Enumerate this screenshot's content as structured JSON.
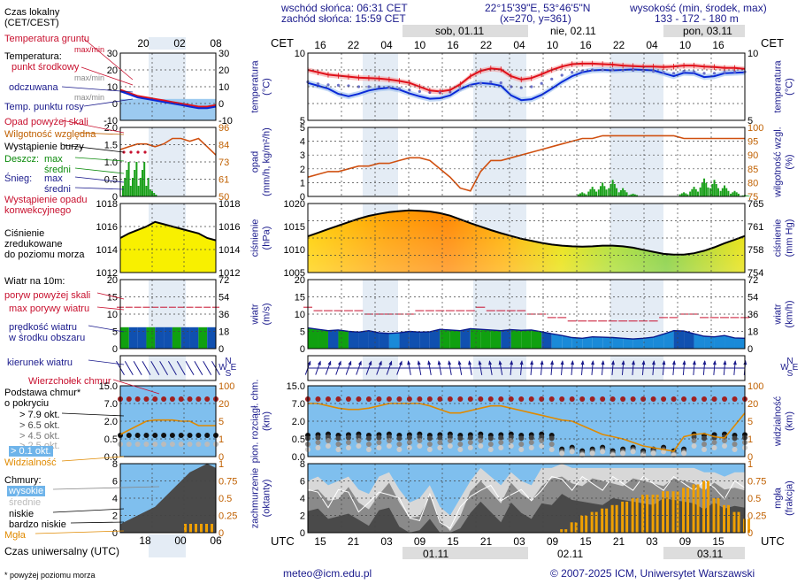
{
  "header": {
    "sunrise": "wschód słońca: 06:31 CET",
    "sunset": "zachód słońca: 15:59 CET",
    "coords": "22°15'39\"E, 53°46'5\"N",
    "grid": "(x=270, y=361)",
    "altitude_label": "wysokość (min, środek, max)",
    "altitude_values": "133 - 172 - 180 m"
  },
  "legend": {
    "local_time": "Czas lokalny\n(CET/CEST)",
    "ground_temp": "Temperatura gruntu",
    "maxmin": "max/min",
    "temperature": "Temperatura:",
    "mid_point": "punkt środkowy",
    "maxmin2": "max/min",
    "felt": "odczuwana",
    "maxmin3": "max/min",
    "dew": "Temp. punktu rosy",
    "precip_over": "Opad powyżej skali",
    "humidity": "Wilgotność względna",
    "storm": "Wystąpienie burzy",
    "rain": "Deszcz:",
    "rain_max": "max",
    "rain_mean": "średni",
    "snow": "Śnieg:",
    "snow_max": "max",
    "snow_mean": "średni",
    "conv": "Wystąpienie opadu\nkonwekcyjnego",
    "pressure": "Ciśnienie\nzredukowane\ndo poziomu morza",
    "wind_at": "Wiatr na 10m:",
    "gust_over": "poryw powyżej skali",
    "gust_max": "max porywy wiatru",
    "wind_speed": "prędkość wiatru\nw środku obszaru",
    "wind_dir": "kierunek wiatru",
    "cloud_top": "Wierzchołek chmur",
    "cloud_base": "Podstawa chmur*\no pokryciu",
    "okt79": "> 7.9 okt.",
    "okt65": "> 6.5 okt.",
    "okt45": "> 4.5 okt.",
    "okt25": "> 2.5 okt.",
    "okt01": "> 0.1 okt.",
    "visibility": "Widzialność",
    "clouds": "Chmury:",
    "high": "wysokie",
    "mid": "średnie",
    "low": "niskie",
    "very_low": "bardzo niskie",
    "fog": "Mgła",
    "utc": "Czas uniwersalny (UTC)",
    "footnote": "* powyżej poziomu morza"
  },
  "axes": {
    "cet": "CET",
    "utc": "UTC",
    "temp_l": "temperatura\n(°C)",
    "temp_r": "temperatura\n(°C)",
    "precip_l": "opad\n(mm/h, kg/m²/h)",
    "precip_r": "wilgotność wzgl.\n(%)",
    "press_l": "ciśnienie\n(hPa)",
    "press_r": "ciśnienie\n(mm Hg)",
    "wind_l": "wiatr\n(m/s)",
    "wind_r": "wiatr\n(km/h)",
    "cloud_l": "pion. rozciągł. chm.\n(km)",
    "cloud_r": "widzialność\n(km)",
    "cover_l": "zachmurzenie\n(oktanty)",
    "cover_r": "mgła\n(frakcja)",
    "wind_dir_N": "N",
    "wind_dir_W": "W",
    "wind_dir_E": "E",
    "wind_dir_S": "S"
  },
  "time": {
    "top_days": [
      "sob, 01.11",
      "nie, 02.11",
      "pon, 03.11"
    ],
    "cet_ticks": [
      "16",
      "22",
      "04",
      "10",
      "16",
      "22",
      "04",
      "10",
      "16",
      "22",
      "04",
      "10",
      "16"
    ],
    "utc_ticks": [
      "15",
      "21",
      "03",
      "09",
      "15",
      "21",
      "03",
      "09",
      "15",
      "21",
      "03",
      "09",
      "15"
    ],
    "bottom_days": [
      "01.11",
      "02.11",
      "03.11"
    ],
    "small_cet": [
      "20",
      "02",
      "08"
    ],
    "small_utc": [
      "18",
      "00",
      "06"
    ]
  },
  "footer": {
    "email": "meteo@icm.edu.pl",
    "copyright": "© 2007-2025 ICM, Uniwersytet Warszawski"
  },
  "chart_data": [
    {
      "type": "line",
      "panel": "temperature",
      "ylim": [
        -2,
        12
      ],
      "left_ticks": [
        "10",
        "5"
      ],
      "right_ticks": [
        "10",
        "5"
      ],
      "series": [
        {
          "values": [
            8.5,
            8.0,
            7.5,
            7.3,
            7.1,
            6.9,
            6.8,
            6.7,
            6.5,
            6.2,
            5.8,
            5.0,
            4.2,
            4.0,
            4.3,
            5.5,
            7.2,
            8.3,
            8.8,
            8.6,
            7.2,
            6.5,
            6.8,
            7.6,
            8.5,
            9.2,
            9.7,
            9.8,
            9.8,
            9.7,
            9.6,
            9.4,
            9.3,
            9.2,
            9.2,
            9.1,
            9.2,
            9.4,
            9.4,
            9.2,
            9.1,
            8.9,
            8.9,
            8.7
          ]
        },
        {
          "values": [
            5.8,
            5.2,
            4.6,
            3.5,
            3.0,
            3.5,
            4.2,
            4.6,
            4.8,
            4.4,
            3.6,
            3.0,
            2.5,
            2.6,
            3.2,
            4.5,
            5.4,
            5.8,
            5.6,
            5.2,
            3.2,
            2.2,
            2.4,
            3.3,
            4.6,
            6.0,
            7.2,
            8.0,
            8.4,
            8.5,
            8.4,
            8.5,
            8.6,
            8.5,
            8.4,
            7.8,
            7.2,
            7.9,
            7.8,
            7.0,
            7.2,
            7.8,
            7.9,
            8.0
          ]
        },
        {
          "values": [
            6.0,
            5.6,
            5.4,
            5.3,
            5.2,
            5.0,
            5.0,
            5.0,
            4.9,
            4.6,
            4.3,
            4.0,
            3.8,
            3.8,
            3.9,
            4.5,
            5.2,
            5.7,
            6.0,
            5.8,
            5.0,
            4.8,
            5.0,
            5.7,
            6.6,
            7.4,
            8.0,
            8.3,
            8.5,
            8.5,
            8.5,
            8.4,
            8.4,
            8.3,
            8.2,
            8.0,
            7.8,
            8.2,
            8.1,
            7.8,
            7.8,
            8.0,
            8.1,
            8.1
          ]
        }
      ]
    },
    {
      "type": "bar",
      "panel": "precipitation",
      "ylim": [
        0,
        5
      ],
      "left_ticks": [
        "5",
        "4",
        "3",
        "2",
        "1",
        "0"
      ],
      "right_ticks": [
        "100",
        "95",
        "90",
        "85",
        "80",
        "75"
      ],
      "series": [
        {
          "values": [
            82,
            83,
            84,
            84,
            85,
            86,
            86,
            87,
            87,
            88,
            89,
            89,
            88,
            85,
            82,
            78,
            77,
            84,
            88,
            88,
            89,
            90,
            91,
            92,
            93,
            94,
            95,
            96,
            96,
            97,
            97,
            97,
            97,
            97,
            97,
            97,
            97,
            96,
            96,
            96,
            96,
            96,
            96,
            96
          ]
        },
        {
          "values": [
            0,
            0,
            0,
            0,
            0,
            0,
            0,
            0,
            0,
            0,
            0,
            0,
            0,
            0,
            0,
            0,
            0,
            0,
            0,
            0,
            0,
            0,
            0,
            0,
            0,
            0,
            0,
            0.3,
            0.7,
            1.0,
            1.2,
            0.6,
            0.2,
            0,
            0,
            0,
            0,
            0.3,
            0.7,
            1.3,
            1.2,
            0.8,
            0.4,
            0.1
          ]
        }
      ]
    },
    {
      "type": "area",
      "panel": "pressure",
      "ylim": [
        1004,
        1024
      ],
      "left_ticks": [
        "1020",
        "1015",
        "1010",
        "1005"
      ],
      "right_ticks": [
        "765",
        "761",
        "758",
        "754"
      ],
      "series": [
        {
          "values": [
            1014.5,
            1015.5,
            1016.6,
            1017.6,
            1018.6,
            1019.6,
            1020.4,
            1021.0,
            1021.5,
            1021.8,
            1022.0,
            1021.9,
            1021.7,
            1021.2,
            1020.5,
            1019.4,
            1018.3,
            1017.3,
            1016.3,
            1015.4,
            1014.6,
            1013.8,
            1013.2,
            1012.6,
            1012.1,
            1011.8,
            1011.6,
            1011.5,
            1011.6,
            1011.8,
            1011.8,
            1011.6,
            1011.2,
            1010.6,
            1010.0,
            1009.4,
            1009.2,
            1009.2,
            1009.6,
            1010.3,
            1011.3,
            1012.5,
            1013.5,
            1014.6
          ]
        }
      ]
    },
    {
      "type": "line",
      "panel": "wind",
      "ylim": [
        0,
        20
      ],
      "left_ticks": [
        "20",
        "15",
        "10",
        "5",
        "0"
      ],
      "right_ticks": [
        "72",
        "54",
        "36",
        "18",
        "0"
      ],
      "series": [
        {
          "values": [
            6.0,
            5.6,
            5.2,
            5.4,
            5.0,
            4.8,
            5.2,
            4.6,
            4.4,
            4.6,
            5.0,
            4.8,
            4.9,
            5.6,
            5.4,
            5.2,
            5.8,
            5.6,
            5.4,
            5.2,
            5.5,
            5.3,
            5.4,
            4.9,
            4.3,
            3.8,
            3.2,
            3.0,
            3.4,
            3.3,
            3.2,
            3.0,
            2.8,
            3.0,
            3.3,
            4.2,
            5.2,
            5.1,
            4.3,
            3.6,
            3.4,
            3.8,
            3.1,
            3.0
          ]
        },
        {
          "values": [
            12,
            11,
            11,
            11,
            11,
            11,
            10,
            10,
            10,
            10,
            10,
            11,
            11,
            11,
            11,
            11,
            11,
            12,
            11,
            11,
            11,
            11,
            10,
            10,
            9,
            9,
            8,
            8,
            8,
            8,
            8,
            8,
            8,
            8,
            8,
            9,
            9,
            10,
            10,
            9,
            9,
            9,
            9,
            9
          ]
        }
      ]
    },
    {
      "type": "scatter",
      "panel": "cloud-base",
      "ylim": [
        0,
        15
      ],
      "left_ticks": [
        "15.0",
        "7.0",
        "2.0",
        "0.5",
        "0.0"
      ],
      "right_ticks": [
        "100",
        "20",
        "5",
        "1",
        "0"
      ],
      "series": [
        {
          "values": [
            9.0,
            9.0,
            9.0,
            9.0,
            9.0,
            9.0,
            9.0,
            9.0,
            9.0,
            9.0,
            9.0,
            9.0,
            9.0,
            9.0,
            9.0,
            9.0,
            9.0,
            9.0,
            9.0,
            9.0,
            9.0,
            9.0,
            9.0,
            9.0,
            9.0,
            9.0,
            9.0,
            9.0,
            9.0,
            9.0,
            9.0,
            9.0,
            9.0,
            9.0,
            9.0,
            9.0,
            9.0,
            9.0,
            9.0,
            9.0,
            9.0,
            9.0,
            9.0,
            9.0
          ]
        },
        {
          "values": [
            20,
            20,
            18,
            16,
            15,
            15,
            16,
            18,
            20,
            20,
            20,
            20,
            18,
            15,
            12,
            12,
            14,
            16,
            18,
            18,
            16,
            14,
            12,
            10,
            8,
            6,
            5,
            4,
            3,
            2,
            1.5,
            1.0,
            0.8,
            0.6,
            0.5,
            0.4,
            0.3,
            1.5,
            2.0,
            2.2,
            1.5,
            1.2,
            4,
            12
          ]
        }
      ]
    },
    {
      "type": "area",
      "panel": "cloud-cover",
      "ylim": [
        0,
        8
      ],
      "left_ticks": [
        "8",
        "6",
        "4",
        "2",
        "0"
      ],
      "right_ticks": [
        "1",
        "0.75",
        "0.5",
        "0.25",
        "0"
      ],
      "series": [
        {
          "values": [
            6.0,
            6.5,
            5.5,
            6.0,
            6.5,
            5.0,
            4.5,
            6.5,
            7.0,
            5.0,
            3.5,
            4.0,
            5.5,
            3.0,
            2.0,
            4.0,
            6.0,
            7.5,
            6.5,
            5.5,
            7.0,
            6.0,
            5.5,
            7.5,
            7.5,
            8.0,
            7.5,
            7.5,
            7.5,
            7.5,
            7.5,
            7.5,
            7.5,
            7.5,
            7.5,
            7.5,
            7.5,
            7.5,
            7.5,
            7.0,
            7.0,
            6.5,
            7.0,
            7.0
          ]
        },
        {
          "values": [
            0,
            0,
            0,
            0,
            0,
            0,
            0,
            0,
            0,
            0,
            0,
            0,
            0,
            0,
            0,
            0,
            0,
            0,
            0,
            0,
            0,
            0,
            0,
            0,
            0,
            0.05,
            0.15,
            0.25,
            0.3,
            0.35,
            0.4,
            0.45,
            0.5,
            0.55,
            0.55,
            0.6,
            0.6,
            0.65,
            0.7,
            0.75,
            0.5,
            0.4,
            0.3,
            0.2
          ]
        }
      ]
    }
  ]
}
